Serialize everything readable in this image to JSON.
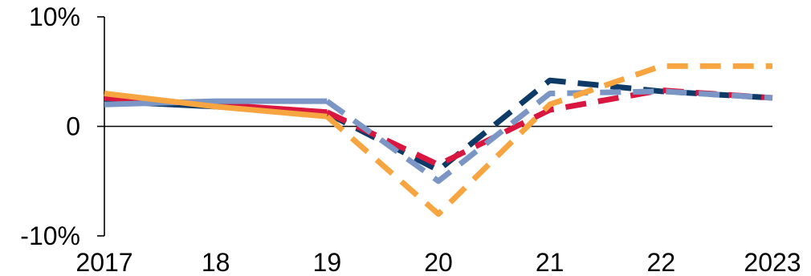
{
  "chart_data": {
    "type": "line",
    "title": "",
    "xlabel": "",
    "ylabel": "",
    "x_tick_labels": [
      "2017",
      "18",
      "19",
      "20",
      "21",
      "22",
      "2023"
    ],
    "x_ticks": [
      2017,
      2018,
      2019,
      2020,
      2021,
      2022,
      2023
    ],
    "xlim": [
      2017,
      2023
    ],
    "y_tick_labels": [
      "10%",
      "0",
      "-10%"
    ],
    "y_ticks": [
      10,
      0,
      -10
    ],
    "ylim": [
      -10,
      10
    ],
    "grid": false,
    "colors": {
      "navy": "#0d3a66",
      "red": "#d8163f",
      "lightblue": "#7b96c4",
      "orange": "#f7a541"
    },
    "series": [
      {
        "color": "#0d3a66",
        "solid": [
          [
            2017,
            2.3
          ],
          [
            2018,
            1.8
          ],
          [
            2019,
            1.2
          ]
        ],
        "dashed": [
          [
            2019,
            1.2
          ],
          [
            2020,
            -4.0
          ],
          [
            2021,
            4.2
          ],
          [
            2022,
            3.2
          ],
          [
            2023,
            2.6
          ]
        ]
      },
      {
        "color": "#d8163f",
        "solid": [
          [
            2017,
            2.6
          ],
          [
            2018,
            2.0
          ],
          [
            2019,
            1.3
          ]
        ],
        "dashed": [
          [
            2019,
            1.3
          ],
          [
            2020,
            -3.5
          ],
          [
            2021,
            1.5
          ],
          [
            2022,
            3.3
          ],
          [
            2023,
            2.6
          ]
        ]
      },
      {
        "color": "#7b96c4",
        "solid": [
          [
            2017,
            2.0
          ],
          [
            2018,
            2.3
          ],
          [
            2019,
            2.3
          ]
        ],
        "dashed": [
          [
            2019,
            2.3
          ],
          [
            2020,
            -5.0
          ],
          [
            2021,
            3.0
          ],
          [
            2022,
            3.2
          ],
          [
            2023,
            2.6
          ]
        ]
      },
      {
        "color": "#f7a541",
        "solid": [
          [
            2017,
            3.0
          ],
          [
            2018,
            1.8
          ],
          [
            2019,
            0.9
          ]
        ],
        "dashed": [
          [
            2019,
            0.9
          ],
          [
            2020,
            -8.0
          ],
          [
            2021,
            2.0
          ],
          [
            2022,
            5.5
          ],
          [
            2023,
            5.5
          ]
        ]
      }
    ]
  }
}
